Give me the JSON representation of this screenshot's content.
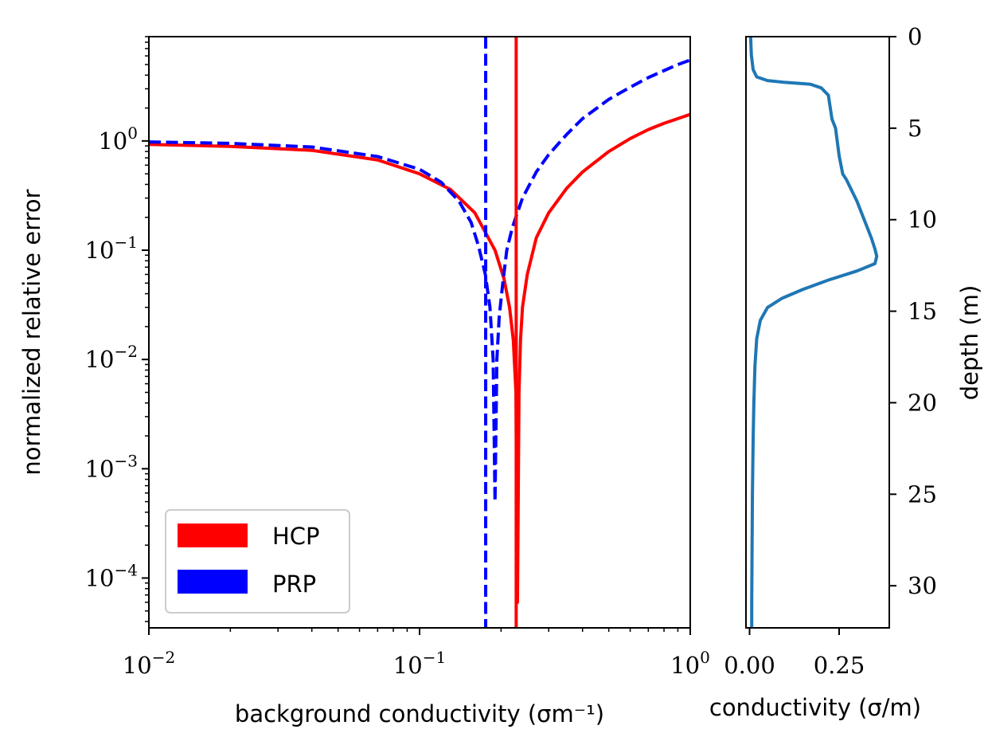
{
  "chart_data": [
    {
      "type": "line",
      "xscale": "log",
      "yscale": "log",
      "xlim": [
        0.01,
        1.0
      ],
      "ylim": [
        3.5e-05,
        9.0
      ],
      "xlabel": "background conductivity (σm⁻¹)",
      "ylabel": "normalized relative error",
      "x_ticks": [
        {
          "value": 0.01,
          "base": "10",
          "exp": "−2"
        },
        {
          "value": 0.1,
          "base": "10",
          "exp": "−1"
        },
        {
          "value": 1.0,
          "base": "10",
          "exp": "0"
        }
      ],
      "y_ticks": [
        {
          "value": 1.0,
          "base": "10",
          "exp": "0"
        },
        {
          "value": 0.1,
          "base": "10",
          "exp": "−1"
        },
        {
          "value": 0.01,
          "base": "10",
          "exp": "−2"
        },
        {
          "value": 0.001,
          "base": "10",
          "exp": "−3"
        },
        {
          "value": 0.0001,
          "base": "10",
          "exp": "−4"
        }
      ],
      "series": [
        {
          "name": "HCP",
          "color": "#ff0000",
          "style": "solid",
          "x": [
            0.01,
            0.02,
            0.04,
            0.07,
            0.1,
            0.13,
            0.16,
            0.19,
            0.205,
            0.215,
            0.222,
            0.227,
            0.23,
            0.233,
            0.236,
            0.24,
            0.25,
            0.27,
            0.3,
            0.35,
            0.4,
            0.5,
            0.6,
            0.7,
            0.8,
            0.9,
            1.0
          ],
          "values": [
            0.93,
            0.89,
            0.82,
            0.67,
            0.5,
            0.36,
            0.22,
            0.1,
            0.055,
            0.03,
            0.015,
            0.005,
            6e-05,
            0.005,
            0.015,
            0.03,
            0.06,
            0.13,
            0.22,
            0.37,
            0.52,
            0.8,
            1.05,
            1.27,
            1.45,
            1.6,
            1.75
          ]
        },
        {
          "name": "PRP",
          "color": "#0000ff",
          "style": "dashed",
          "x": [
            0.01,
            0.02,
            0.04,
            0.07,
            0.1,
            0.12,
            0.14,
            0.155,
            0.165,
            0.175,
            0.182,
            0.187,
            0.19,
            0.193,
            0.197,
            0.203,
            0.21,
            0.22,
            0.24,
            0.27,
            0.3,
            0.35,
            0.4,
            0.5,
            0.6,
            0.7,
            0.8,
            0.9,
            1.0
          ],
          "values": [
            0.98,
            0.95,
            0.88,
            0.72,
            0.55,
            0.42,
            0.28,
            0.18,
            0.11,
            0.06,
            0.03,
            0.01,
            0.0005,
            0.01,
            0.025,
            0.05,
            0.1,
            0.16,
            0.3,
            0.52,
            0.75,
            1.15,
            1.6,
            2.4,
            3.1,
            3.8,
            4.4,
            5.0,
            5.5
          ]
        },
        {
          "name": "HCP vertical",
          "color": "#ff0000",
          "style": "solid",
          "x": [
            0.2275,
            0.2275
          ],
          "values": [
            9.0,
            3.5e-05
          ]
        },
        {
          "name": "PRP vertical",
          "color": "#0000ff",
          "style": "dashed",
          "x": [
            0.1755,
            0.1755
          ],
          "values": [
            9.0,
            3.5e-05
          ]
        }
      ],
      "legend": {
        "placement": "lower-left",
        "entries": [
          {
            "label": "HCP",
            "color": "#ff0000"
          },
          {
            "label": "PRP",
            "color": "#0000ff"
          }
        ]
      }
    },
    {
      "type": "line",
      "xlim": [
        -0.01,
        0.39
      ],
      "ylim": [
        32.3,
        0
      ],
      "xlabel": "conductivity (σ/m)",
      "ylabel": "depth (m)",
      "x_ticks": [
        {
          "value": 0.0,
          "label": "0.00"
        },
        {
          "value": 0.25,
          "label": "0.25"
        }
      ],
      "y_ticks": [
        {
          "value": 0,
          "label": "0"
        },
        {
          "value": 5,
          "label": "5"
        },
        {
          "value": 10,
          "label": "10"
        },
        {
          "value": 15,
          "label": "15"
        },
        {
          "value": 20,
          "label": "20"
        },
        {
          "value": 25,
          "label": "25"
        },
        {
          "value": 30,
          "label": "30"
        }
      ],
      "series": [
        {
          "name": "conductivity profile",
          "color": "#1f77b4",
          "x": [
            0.003,
            0.005,
            0.01,
            0.02,
            0.05,
            0.1,
            0.17,
            0.2,
            0.22,
            0.23,
            0.24,
            0.25,
            0.26,
            0.27,
            0.28,
            0.3,
            0.32,
            0.34,
            0.35,
            0.355,
            0.35,
            0.3,
            0.22,
            0.15,
            0.09,
            0.05,
            0.03,
            0.02,
            0.015,
            0.012,
            0.01,
            0.008,
            0.007,
            0.006,
            0.006
          ],
          "depth": [
            0,
            1.0,
            1.8,
            2.2,
            2.4,
            2.5,
            2.6,
            2.8,
            3.2,
            4.5,
            5.0,
            6.5,
            7.5,
            7.8,
            8.2,
            9.0,
            10.0,
            11.0,
            11.6,
            12.0,
            12.4,
            12.8,
            13.3,
            13.8,
            14.3,
            14.8,
            15.5,
            16.5,
            18.0,
            20.0,
            22.0,
            25.0,
            28.0,
            31.0,
            32.3
          ]
        }
      ]
    }
  ]
}
